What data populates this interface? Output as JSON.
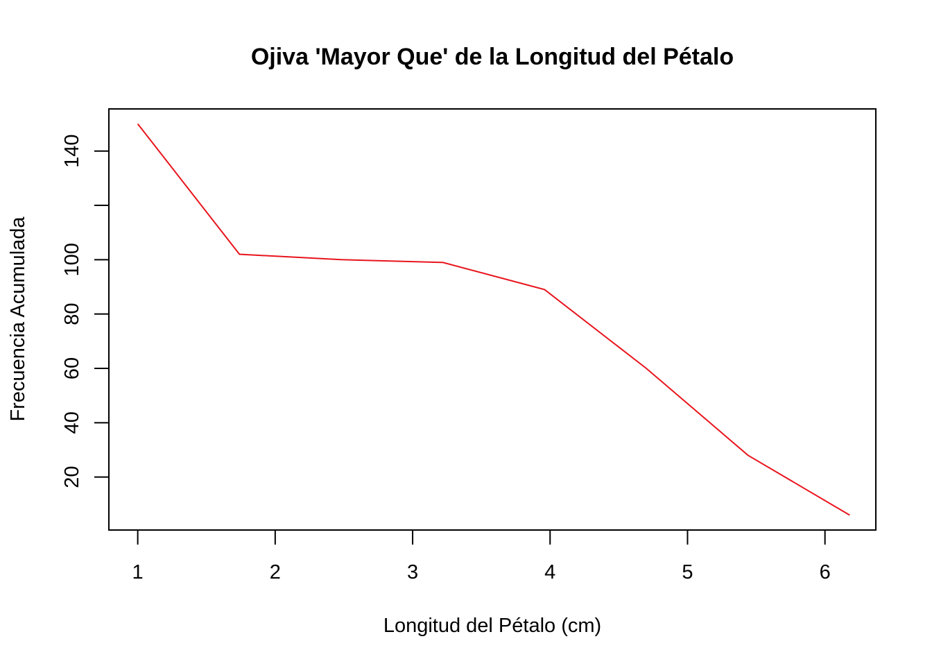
{
  "chart_data": {
    "type": "line",
    "title": "Ojiva 'Mayor Que' de la Longitud del Pétalo",
    "xlabel": "Longitud del Pétalo (cm)",
    "ylabel": "Frecuencia Acumulada",
    "x_ticks": [
      1,
      2,
      3,
      4,
      5,
      6
    ],
    "y_ticks": [
      20,
      40,
      60,
      80,
      100,
      120,
      140
    ],
    "y_tick_labels": [
      "20",
      "40",
      "60",
      "80",
      "100",
      "",
      "140"
    ],
    "xlim": [
      0.79,
      6.37
    ],
    "ylim": [
      0.5,
      155.5
    ],
    "grid": false,
    "series": [
      {
        "color": "#e8141c",
        "x": [
          1.0,
          1.74,
          2.48,
          3.22,
          3.96,
          4.7,
          5.44,
          6.18
        ],
        "y": [
          150,
          102,
          100,
          99,
          89,
          60,
          28,
          6
        ]
      }
    ]
  }
}
